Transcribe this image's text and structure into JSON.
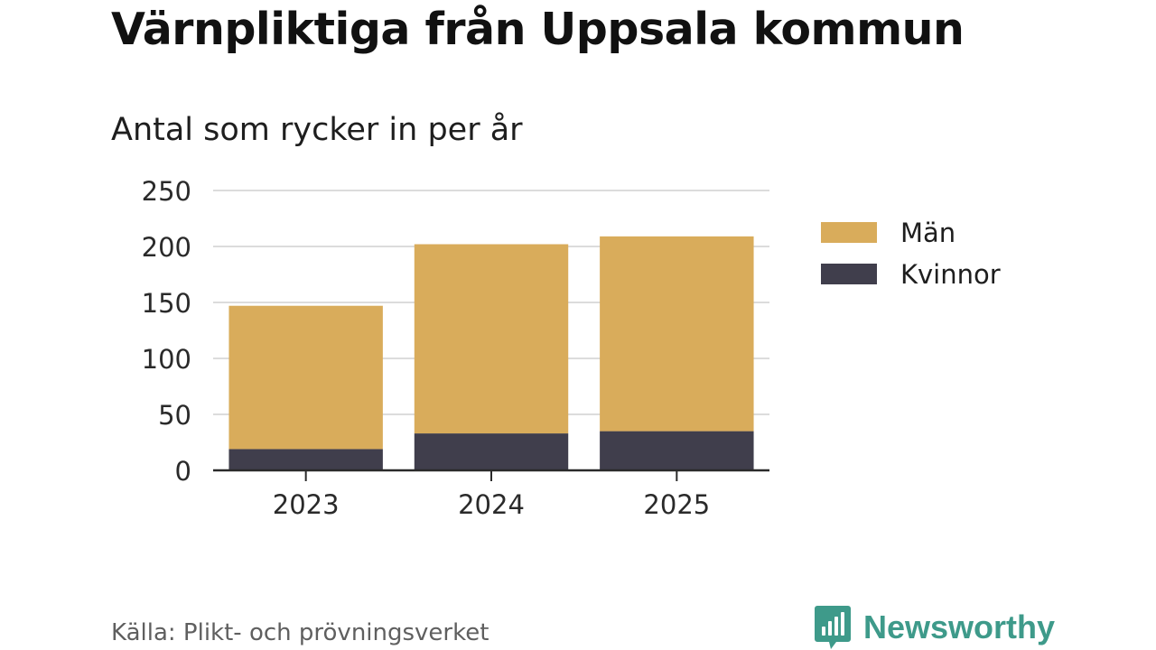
{
  "title": "Värnpliktiga från Uppsala kommun",
  "subtitle": "Antal som rycker in per år",
  "source": "Källa: Plikt- och prövningsverket",
  "brand": {
    "name": "Newsworthy",
    "icon": "newsworthy-logo-icon",
    "color": "#3e9a8a"
  },
  "chart_data": {
    "type": "bar",
    "stacked": true,
    "title": "Värnpliktiga från Uppsala kommun",
    "subtitle": "Antal som rycker in per år",
    "xlabel": "",
    "ylabel": "",
    "categories": [
      "2023",
      "2024",
      "2025"
    ],
    "series": [
      {
        "name": "Kvinnor",
        "color": "#403e4c",
        "values": [
          19,
          33,
          35
        ]
      },
      {
        "name": "Män",
        "color": "#d9ac5b",
        "values": [
          128,
          169,
          174
        ]
      }
    ],
    "legend_order": [
      "Män",
      "Kvinnor"
    ],
    "legend_position": "right",
    "ylim": [
      0,
      250
    ],
    "yticks": [
      0,
      50,
      100,
      150,
      200,
      250
    ],
    "grid": true
  }
}
